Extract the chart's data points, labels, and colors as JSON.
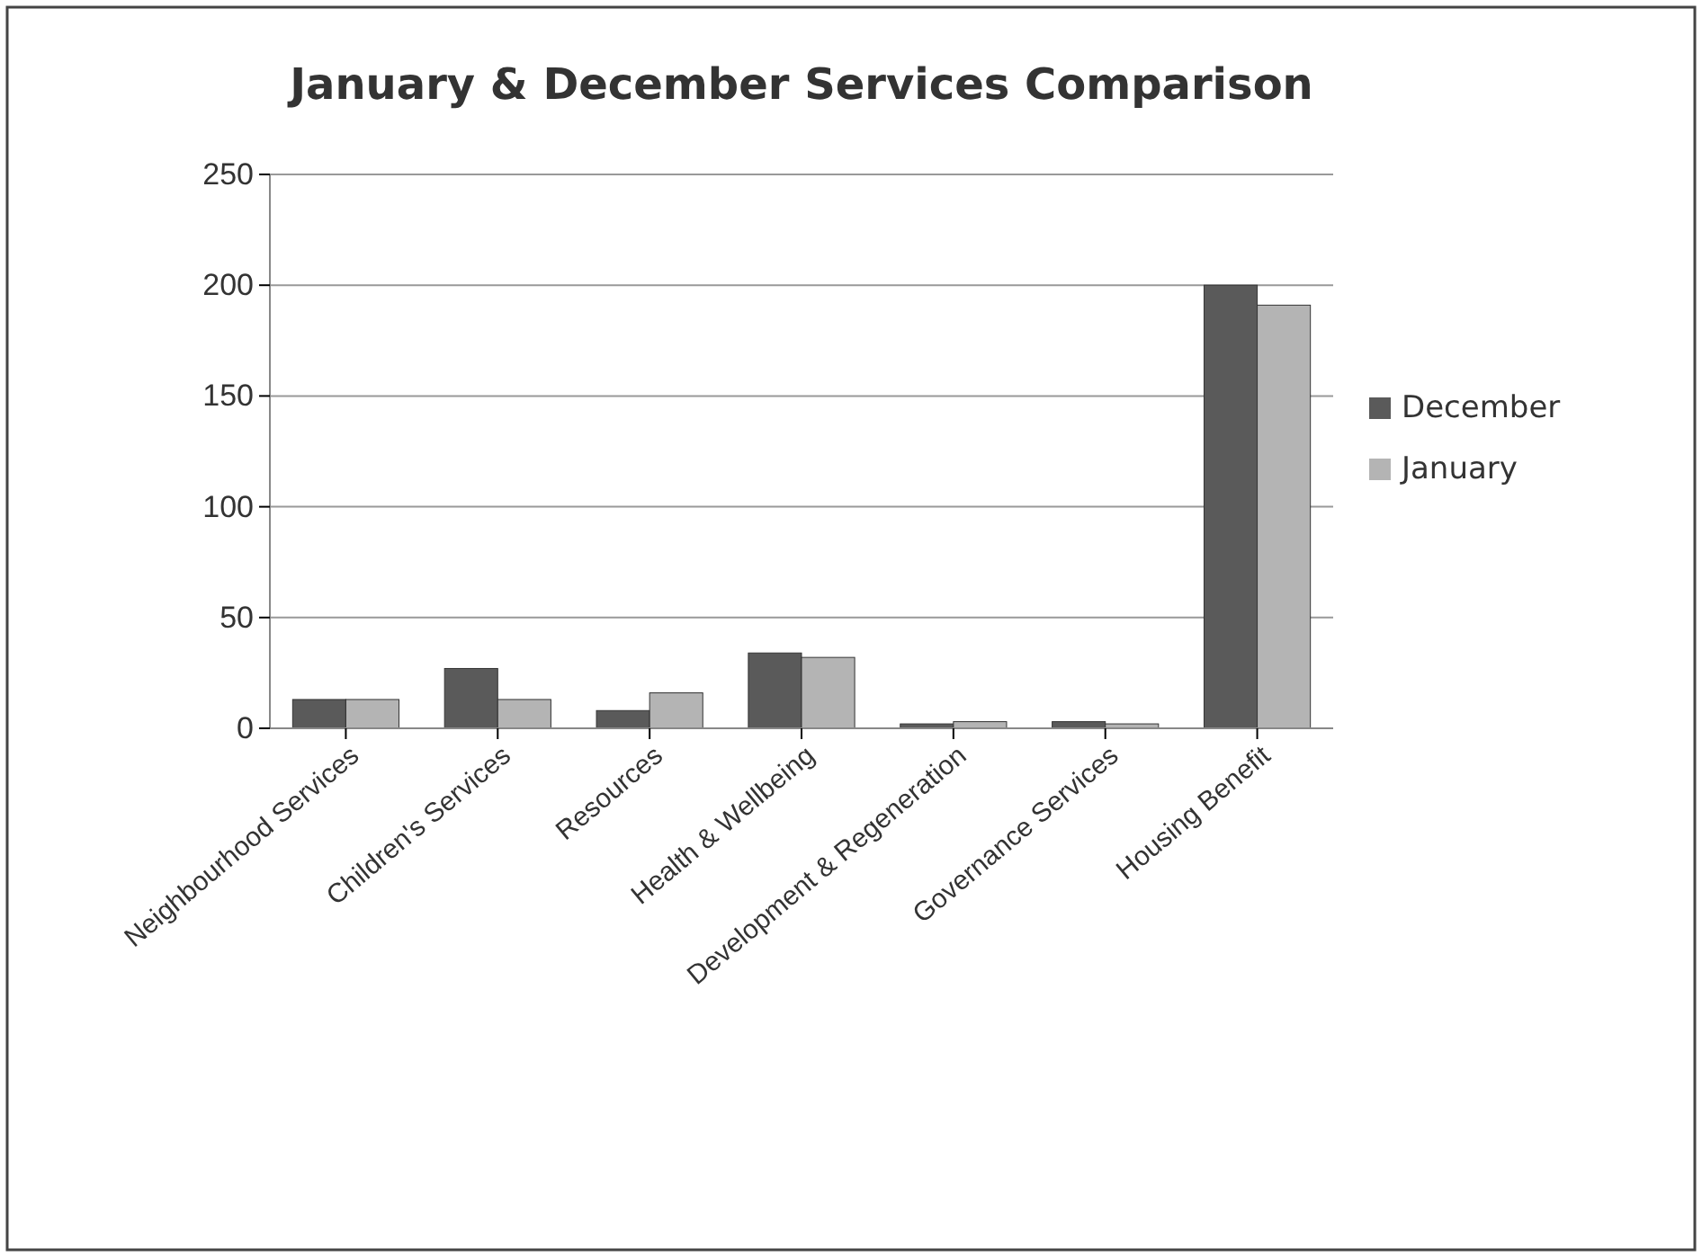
{
  "chart_data": {
    "type": "bar",
    "title": "January & December Services Comparison",
    "categories": [
      "Neighbourhood Services",
      "Children's Services",
      "Resources",
      "Health & Wellbeing",
      "Development & Regeneration",
      "Governance Services",
      "Housing Benefit"
    ],
    "series": [
      {
        "name": "December",
        "color": "#5a5a5a",
        "values": [
          13,
          27,
          8,
          34,
          2,
          3,
          200
        ]
      },
      {
        "name": "January",
        "color": "#b4b4b4",
        "values": [
          13,
          13,
          16,
          32,
          3,
          2,
          191
        ]
      }
    ],
    "ylim": [
      0,
      250
    ],
    "yticks": [
      0,
      50,
      100,
      150,
      200,
      250
    ],
    "grid": "y",
    "legend": "right"
  }
}
